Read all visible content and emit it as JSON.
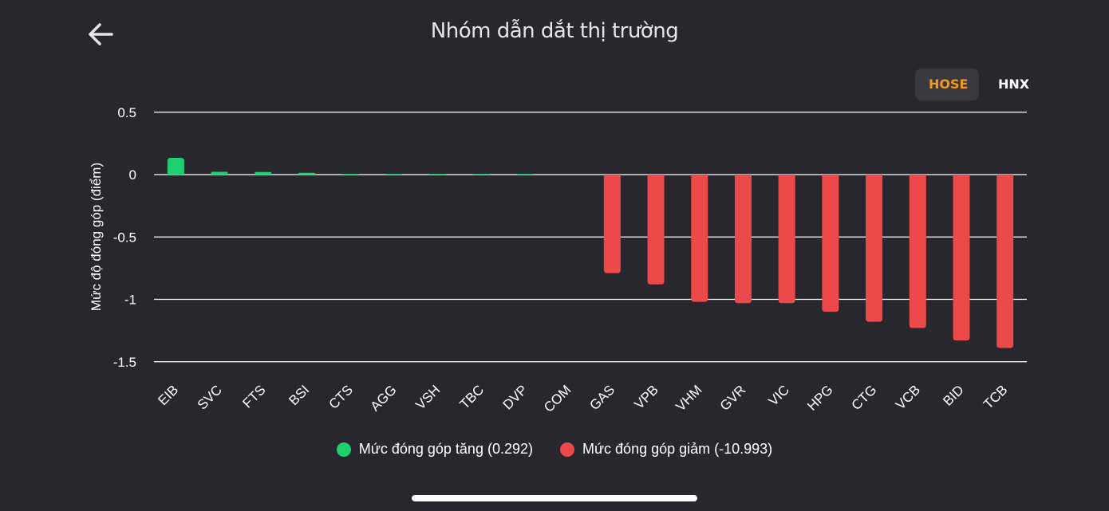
{
  "header": {
    "title": "Nhóm dẫn dắt thị trường",
    "back_icon": "arrow-left-icon"
  },
  "exchange_toggle": {
    "options": [
      {
        "label": "HOSE",
        "active": true
      },
      {
        "label": "HNX",
        "active": false
      }
    ]
  },
  "colors": {
    "background": "#28272e",
    "positive": "#1ecf6e",
    "negative": "#ec4a4a",
    "accent": "#f39a1e",
    "grid": "#ffffff"
  },
  "legend": {
    "positive_label": "Mức đóng góp tăng (0.292)",
    "negative_label": "Mức đóng góp giảm (-10.993)"
  },
  "chart_data": {
    "type": "bar",
    "title": "Nhóm dẫn dắt thị trường",
    "xlabel": "",
    "ylabel": "Mức độ đóng góp (điểm)",
    "ylim": [
      -1.5,
      0.5
    ],
    "yticks": [
      0.5,
      0,
      -0.5,
      -1,
      -1.5
    ],
    "ytick_labels": [
      "0.5",
      "0",
      "-0.5",
      "-1",
      "-1.5"
    ],
    "grid": true,
    "legend_position": "bottom",
    "categories": [
      "EIB",
      "SVC",
      "FTS",
      "BSI",
      "CTS",
      "AGG",
      "VSH",
      "TBC",
      "DVP",
      "COM",
      "GAS",
      "VPB",
      "VHM",
      "GVR",
      "VIC",
      "HPG",
      "CTG",
      "VCB",
      "BID",
      "TCB"
    ],
    "values": [
      0.134,
      0.022,
      0.021,
      0.014,
      0.005,
      0.005,
      0.005,
      0.005,
      0.005,
      0.0,
      -0.79,
      -0.88,
      -1.02,
      -1.03,
      -1.03,
      -1.1,
      -1.18,
      -1.23,
      -1.33,
      -1.39
    ],
    "series": [
      {
        "name": "Mức đóng góp tăng",
        "total": 0.292,
        "color": "#1ecf6e"
      },
      {
        "name": "Mức đóng góp giảm",
        "total": -10.993,
        "color": "#ec4a4a"
      }
    ]
  }
}
